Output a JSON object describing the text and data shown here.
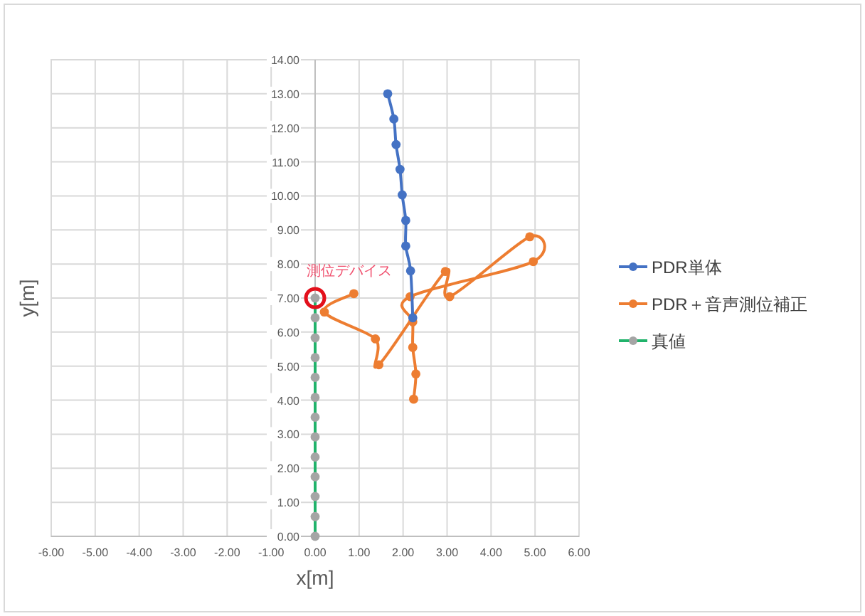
{
  "chart_data": {
    "type": "line",
    "xlabel": "x[m]",
    "ylabel": "y[m]",
    "xlim": [
      -6,
      6
    ],
    "ylim": [
      0,
      14
    ],
    "xticks": [
      {
        "value": -6,
        "label": "-6.00"
      },
      {
        "value": -5,
        "label": "-5.00"
      },
      {
        "value": -4,
        "label": "-4.00"
      },
      {
        "value": -3,
        "label": "-3.00"
      },
      {
        "value": -2,
        "label": "-2.00"
      },
      {
        "value": -1,
        "label": "-1.00"
      },
      {
        "value": 0,
        "label": "0.00"
      },
      {
        "value": 1,
        "label": "1.00"
      },
      {
        "value": 2,
        "label": "2.00"
      },
      {
        "value": 3,
        "label": "3.00"
      },
      {
        "value": 4,
        "label": "4.00"
      },
      {
        "value": 5,
        "label": "5.00"
      },
      {
        "value": 6,
        "label": "6.00"
      }
    ],
    "yticks": [
      {
        "value": 0,
        "label": "0.00"
      },
      {
        "value": 1,
        "label": "1.00"
      },
      {
        "value": 2,
        "label": "2.00"
      },
      {
        "value": 3,
        "label": "3.00"
      },
      {
        "value": 4,
        "label": "4.00"
      },
      {
        "value": 5,
        "label": "5.00"
      },
      {
        "value": 6,
        "label": "6.00"
      },
      {
        "value": 7,
        "label": "7.00"
      },
      {
        "value": 8,
        "label": "8.00"
      },
      {
        "value": 9,
        "label": "9.00"
      },
      {
        "value": 10,
        "label": "10.00"
      },
      {
        "value": 11,
        "label": "11.00"
      },
      {
        "value": 12,
        "label": "12.00"
      },
      {
        "value": 13,
        "label": "13.00"
      },
      {
        "value": 14,
        "label": "14.00"
      }
    ],
    "grid": true,
    "legend": "right",
    "marker": "circle",
    "line_style": "solid",
    "series": [
      {
        "name": "PDR単体",
        "color": "#4472c4",
        "x": [
          1.65,
          1.79,
          1.84,
          1.93,
          1.98,
          2.06,
          2.06,
          2.17,
          2.22
        ],
        "values": [
          13.0,
          12.26,
          11.51,
          10.78,
          10.03,
          9.28,
          8.53,
          7.8,
          6.42
        ]
      },
      {
        "name": "PDR＋音声測位補正",
        "color": "#ed7d31",
        "x": [
          2.24,
          2.29,
          2.22,
          2.22,
          2.16,
          4.96,
          4.88,
          3.06,
          2.96,
          1.45,
          1.37,
          0.21,
          0.88
        ],
        "values": [
          4.03,
          4.77,
          5.55,
          6.3,
          7.04,
          8.07,
          8.8,
          7.04,
          7.78,
          5.04,
          5.8,
          6.59,
          7.13
        ]
      },
      {
        "name": "真値",
        "color": "#21b36b",
        "colors": [
          "#a5a5a5",
          "#a5a5a5",
          "#a5a5a5",
          "#a5a5a5",
          "#a5a5a5",
          "#a5a5a5",
          "#a5a5a5",
          "#a5a5a5",
          "#a5a5a5",
          "#a5a5a5",
          "#a5a5a5",
          "#a5a5a5",
          "#a5a5a5"
        ],
        "x": [
          0,
          0,
          0,
          0,
          0,
          0,
          0,
          0,
          0,
          0,
          0,
          0,
          0
        ],
        "values": [
          0,
          0.58,
          1.17,
          1.75,
          2.33,
          2.92,
          3.5,
          4.08,
          4.67,
          5.25,
          5.83,
          6.42,
          7.0
        ]
      }
    ],
    "annotations": [
      {
        "text": "測位デバイス",
        "x": 0,
        "y": 7
      }
    ]
  }
}
